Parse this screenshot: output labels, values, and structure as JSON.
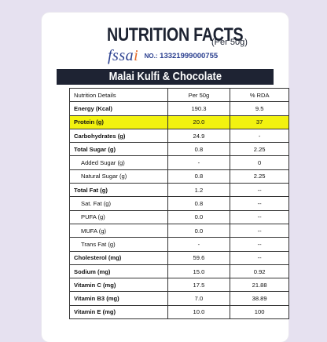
{
  "header": {
    "title": "NUTRITION FACTS",
    "subtitle": "(Per 50g)",
    "fssai_logo": "fssai",
    "license_label": "NO.:",
    "license_number": "13321999000755"
  },
  "product": {
    "name": "Malai Kulfi & Chocolate"
  },
  "table": {
    "columns": [
      "Nutrition Details",
      "Per 50g",
      "% RDA"
    ],
    "rows": [
      {
        "label": "Energy (Kcal)",
        "per_50g": "190.3",
        "rda": "9.5",
        "bold": true,
        "highlight": false
      },
      {
        "label": "Protein (g)",
        "per_50g": "20.0",
        "rda": "37",
        "bold": true,
        "highlight": true
      },
      {
        "label": "Carbohydrates (g)",
        "per_50g": "24.9",
        "rda": "-",
        "bold": true,
        "highlight": false
      },
      {
        "label": "Total Sugar (g)",
        "per_50g": "0.8",
        "rda": "2.25",
        "bold": true,
        "highlight": false
      },
      {
        "label": "Added Sugar (g)",
        "per_50g": "-",
        "rda": "0",
        "bold": false,
        "highlight": false
      },
      {
        "label": "Natural Sugar (g)",
        "per_50g": "0.8",
        "rda": "2.25",
        "bold": false,
        "highlight": false
      },
      {
        "label": "Total Fat (g)",
        "per_50g": "1.2",
        "rda": "--",
        "bold": true,
        "highlight": false
      },
      {
        "label": "Sat. Fat (g)",
        "per_50g": "0.8",
        "rda": "--",
        "bold": false,
        "highlight": false
      },
      {
        "label": "PUFA (g)",
        "per_50g": "0.0",
        "rda": "--",
        "bold": false,
        "highlight": false
      },
      {
        "label": "MUFA (g)",
        "per_50g": "0.0",
        "rda": "--",
        "bold": false,
        "highlight": false
      },
      {
        "label": "Trans Fat (g)",
        "per_50g": "-",
        "rda": "--",
        "bold": false,
        "highlight": false
      },
      {
        "label": "Cholesterol (mg)",
        "per_50g": "59.6",
        "rda": "--",
        "bold": true,
        "highlight": false
      },
      {
        "label": "Sodium (mg)",
        "per_50g": "15.0",
        "rda": "0.92",
        "bold": true,
        "highlight": false
      },
      {
        "label": "Vitamin C (mg)",
        "per_50g": "17.5",
        "rda": "21.88",
        "bold": true,
        "highlight": false
      },
      {
        "label": "Vitamin B3 (mg)",
        "per_50g": "7.0",
        "rda": "38.89",
        "bold": true,
        "highlight": false
      },
      {
        "label": "Vitamin E (mg)",
        "per_50g": "10.0",
        "rda": "100",
        "bold": true,
        "highlight": false
      }
    ]
  },
  "colors": {
    "background": "#e6e1f0",
    "title": "#1c2231",
    "product_bar": "#1e2333",
    "highlight": "#f2f210",
    "fssai_blue": "#2a3f8f",
    "fssai_orange": "#e46b2a"
  }
}
